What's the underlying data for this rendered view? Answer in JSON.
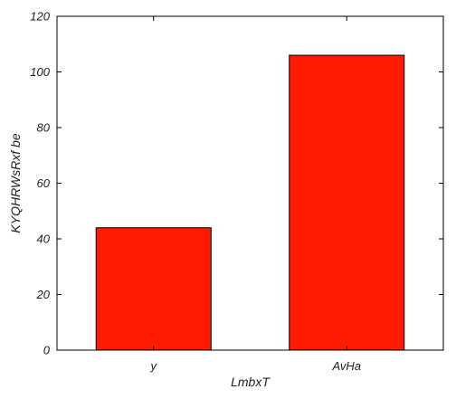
{
  "chart_data": {
    "type": "bar",
    "title": "",
    "xlabel": "LmbxT",
    "ylabel": "KYQHRWsRxf be",
    "categories": [
      "y",
      "AvHa"
    ],
    "values": [
      44,
      106
    ],
    "ylim": [
      0,
      120
    ],
    "yticks": [
      0,
      20,
      40,
      60,
      80,
      100,
      120
    ],
    "ytick_labels": [
      "0",
      "20",
      "40",
      "60",
      "80",
      "100",
      "120"
    ],
    "grid": false,
    "legend": "none",
    "colors": {
      "bar": "#ff1a00",
      "edge": "#000000",
      "axis": "#000000"
    }
  }
}
